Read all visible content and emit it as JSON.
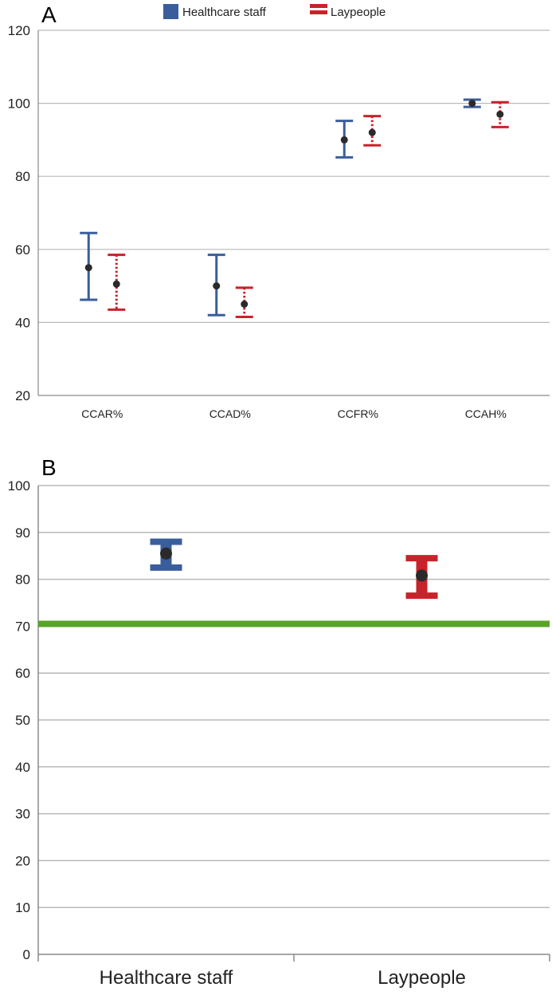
{
  "chart_data": [
    {
      "panel": "A",
      "type": "scatter",
      "title": "",
      "xlabel": "",
      "ylabel": "",
      "categories": [
        "CCAR%",
        "CCAD%",
        "CCFR%",
        "CCAH%"
      ],
      "ylim": [
        20,
        120
      ],
      "yticks": [
        20,
        40,
        60,
        80,
        100,
        120
      ],
      "grid": true,
      "legend": "top-center",
      "series": [
        {
          "name": "Healthcare staff",
          "color": "#3a5e9c",
          "line_style": "solid",
          "values": [
            55,
            50,
            90,
            100
          ],
          "upper": [
            64.5,
            58.5,
            95.2,
            101
          ],
          "lower": [
            46.2,
            42,
            85.2,
            99
          ]
        },
        {
          "name": "Laypeople",
          "color": "#c8232a",
          "line_style": "dotted",
          "values": [
            50.5,
            45,
            92,
            97
          ],
          "upper": [
            58.5,
            49.5,
            96.5,
            100.3
          ],
          "lower": [
            43.5,
            41.5,
            88.5,
            93.5
          ]
        }
      ]
    },
    {
      "panel": "B",
      "type": "scatter",
      "title": "",
      "xlabel": "",
      "ylabel": "",
      "categories": [
        "Healthcare staff",
        "Laypeople"
      ],
      "ylim": [
        0,
        100
      ],
      "yticks": [
        0,
        10,
        20,
        30,
        40,
        50,
        60,
        70,
        80,
        90,
        100
      ],
      "grid": true,
      "reference_line": {
        "y": 70.5,
        "color": "#59a32a"
      },
      "series": [
        {
          "name": "",
          "colors": [
            "#3a5e9c",
            "#c8232a"
          ],
          "values": [
            85.5,
            80.8
          ],
          "upper": [
            88,
            84.5
          ],
          "lower": [
            82.5,
            76.5
          ]
        }
      ]
    }
  ]
}
